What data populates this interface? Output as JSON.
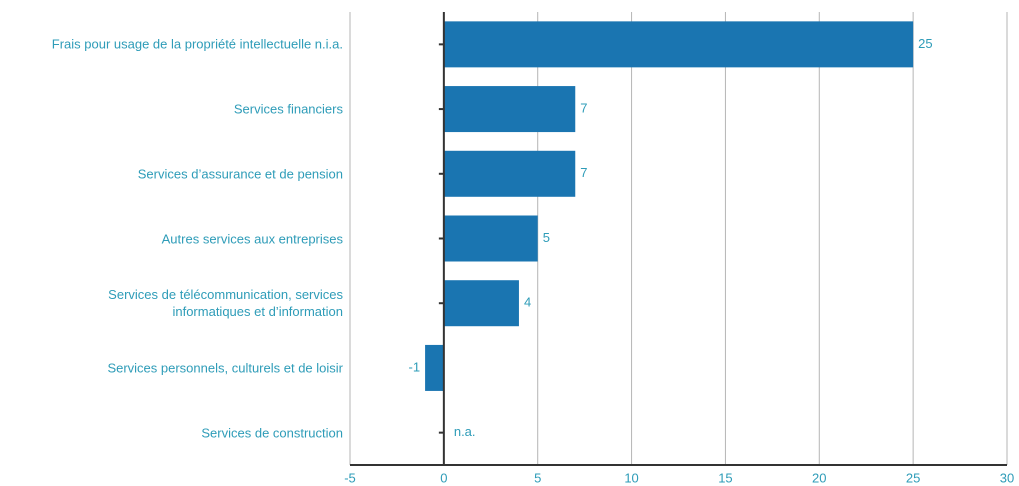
{
  "chart_data": {
    "type": "bar",
    "orientation": "horizontal",
    "categories": [
      "Frais pour usage de la propriété intellectuelle n.i.a.",
      "Services financiers",
      "Services d’assurance et de pension",
      "Autres services aux entreprises",
      "Services de télécommunication, services\ninformatiques et d’information",
      "Services personnels, culturels et de loisir",
      "Services de construction"
    ],
    "values": [
      25,
      7,
      7,
      5,
      4,
      -1,
      null
    ],
    "value_labels": [
      "25",
      "7",
      "7",
      "5",
      "4",
      "-1",
      "n.a."
    ],
    "color": "#1a75b1",
    "xlim": [
      -5,
      30
    ],
    "xticks": [
      -5,
      0,
      5,
      10,
      15,
      20,
      25,
      30
    ],
    "grid": true
  }
}
